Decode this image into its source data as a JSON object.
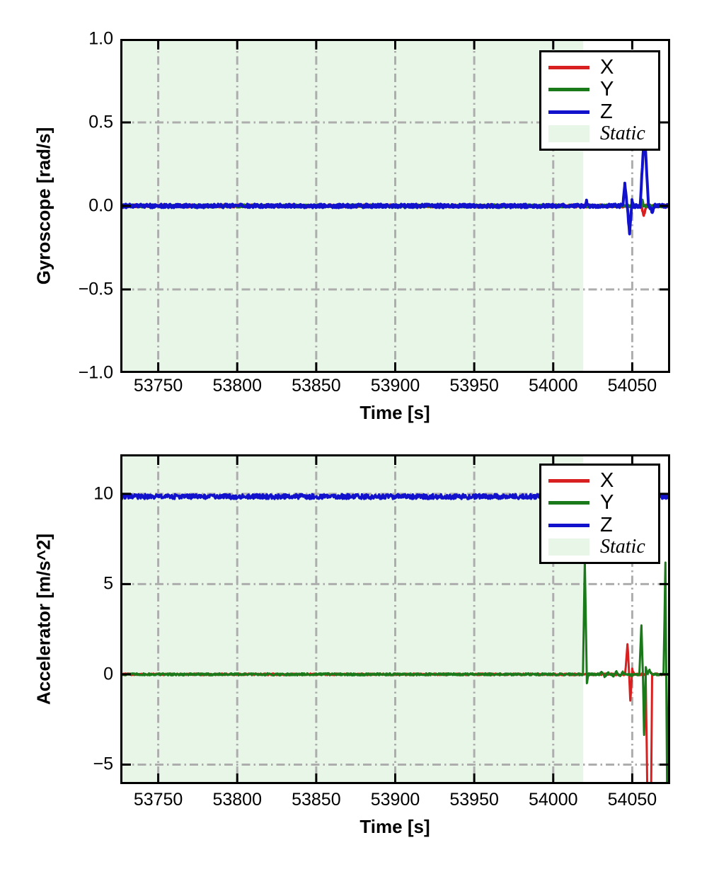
{
  "figure": {
    "background": "#ffffff"
  },
  "colors": {
    "x_series": "#d82020",
    "y_series": "#1a7a1a",
    "z_series": "#1212cc",
    "static_fill": "#e8f6e8",
    "grid": "#adadad",
    "axis": "#000000",
    "legend_bg": "#ffffff",
    "text": "#000000"
  },
  "chart_data": [
    {
      "type": "line",
      "title": "",
      "xlabel": "Time [s]",
      "ylabel": "Gyroscope [rad/s]",
      "xlim": [
        53726,
        54074
      ],
      "ylim": [
        -1.0,
        1.0
      ],
      "xticks": [
        53750,
        53800,
        53850,
        53900,
        53950,
        54000,
        54050
      ],
      "xtick_labels": [
        "53750",
        "53800",
        "53850",
        "53900",
        "53950",
        "54000",
        "54050"
      ],
      "yticks": [
        1.0,
        0.5,
        0.0,
        -0.5,
        -1.0
      ],
      "ytick_labels": [
        "1.0",
        "0.5",
        "0.0",
        "−0.5",
        "−1.0"
      ],
      "grid": "dash-dot",
      "legend": {
        "position": "upper-right",
        "entries": [
          {
            "label": "X",
            "color_key": "x_series",
            "type": "line"
          },
          {
            "label": "Y",
            "color_key": "y_series",
            "type": "line"
          },
          {
            "label": "Z",
            "color_key": "z_series",
            "type": "line"
          },
          {
            "label": "Static",
            "color_key": "static_fill",
            "type": "patch",
            "italic": true
          }
        ]
      },
      "static_region": {
        "label": "Static",
        "x0": 53726,
        "x1": 54019
      },
      "series": [
        {
          "name": "X",
          "color_key": "x_series",
          "noise": 0.008,
          "width": 3.5,
          "anchors": [
            [
              53726,
              0
            ],
            [
              54055.8,
              0
            ],
            [
              54057.3,
              -0.06
            ],
            [
              54058.8,
              0
            ],
            [
              54074,
              0
            ]
          ]
        },
        {
          "name": "Y",
          "color_key": "y_series",
          "noise": 0.008,
          "width": 3.5,
          "anchors": [
            [
              53726,
              0
            ],
            [
              54055.2,
              0
            ],
            [
              54056.2,
              0.035
            ],
            [
              54057.2,
              0
            ],
            [
              54074,
              0
            ]
          ]
        },
        {
          "name": "Z",
          "color_key": "z_series",
          "noise": 0.011,
          "width": 4,
          "anchors": [
            [
              53726,
              0
            ],
            [
              54020.2,
              0
            ],
            [
              54021,
              0.03
            ],
            [
              54021.8,
              0
            ],
            [
              54044,
              0
            ],
            [
              54045.3,
              0.135
            ],
            [
              54046.8,
              0
            ],
            [
              54048.3,
              -0.165
            ],
            [
              54049.8,
              0.03
            ],
            [
              54051,
              0
            ],
            [
              54055,
              0
            ],
            [
              54057.7,
              0.45
            ],
            [
              54060.3,
              0
            ],
            [
              54062.5,
              -0.035
            ],
            [
              54064.5,
              0
            ],
            [
              54074,
              0
            ]
          ]
        }
      ]
    },
    {
      "type": "line",
      "title": "",
      "xlabel": "Time [s]",
      "ylabel": "Accelerator [m/s^2]",
      "xlim": [
        53726,
        54074
      ],
      "ylim": [
        -6.08,
        12.19
      ],
      "xticks": [
        53750,
        53800,
        53850,
        53900,
        53950,
        54000,
        54050
      ],
      "xtick_labels": [
        "53750",
        "53800",
        "53850",
        "53900",
        "53950",
        "54000",
        "54050"
      ],
      "yticks": [
        10,
        5,
        0,
        -5
      ],
      "ytick_labels": [
        "10",
        "5",
        "0",
        "−5"
      ],
      "grid": "dash-dot",
      "legend": {
        "position": "upper-right",
        "entries": [
          {
            "label": "X",
            "color_key": "x_series",
            "type": "line"
          },
          {
            "label": "Y",
            "color_key": "y_series",
            "type": "line"
          },
          {
            "label": "Z",
            "color_key": "z_series",
            "type": "line"
          },
          {
            "label": "Static",
            "color_key": "static_fill",
            "type": "patch",
            "italic": true
          }
        ]
      },
      "static_region": {
        "label": "Static",
        "x0": 53726,
        "x1": 54019
      },
      "series": [
        {
          "name": "X",
          "color_key": "x_series",
          "noise": 0.05,
          "width": 3,
          "anchors": [
            [
              53726,
              0
            ],
            [
              54045.5,
              0
            ],
            [
              54047,
              1.7
            ],
            [
              54048,
              0.1
            ],
            [
              54048.8,
              -1.5
            ],
            [
              54050,
              0.3
            ],
            [
              54051.2,
              0
            ],
            [
              54058.5,
              0
            ],
            [
              54059.8,
              -8
            ],
            [
              54061.8,
              -8
            ],
            [
              54062.6,
              0
            ],
            [
              54074,
              0
            ]
          ]
        },
        {
          "name": "Y",
          "color_key": "y_series",
          "noise": 0.06,
          "width": 3,
          "anchors": [
            [
              53726,
              0
            ],
            [
              54018.8,
              0
            ],
            [
              54020,
              6.3
            ],
            [
              54021.3,
              -0.5
            ],
            [
              54022.3,
              0
            ],
            [
              54029.5,
              0
            ],
            [
              54030.5,
              0.12
            ],
            [
              54032.5,
              -0.1
            ],
            [
              54035,
              0.1
            ],
            [
              54038,
              -0.08
            ],
            [
              54040,
              0.12
            ],
            [
              54042,
              -0.1
            ],
            [
              54044,
              0.1
            ],
            [
              54046,
              -0.05
            ],
            [
              54054.5,
              0
            ],
            [
              54055.8,
              2.75
            ],
            [
              54056.8,
              -0.2
            ],
            [
              54057.5,
              -3.4
            ],
            [
              54058.6,
              0.4
            ],
            [
              54059.5,
              0
            ],
            [
              54061,
              0.25
            ],
            [
              54062.2,
              0
            ],
            [
              54069.8,
              0
            ],
            [
              54071,
              6.15
            ],
            [
              54072.2,
              -8
            ],
            [
              54073.3,
              0
            ],
            [
              54074,
              0
            ]
          ]
        },
        {
          "name": "Z",
          "color_key": "z_series",
          "noise": 0.13,
          "width": 3.5,
          "anchors": [
            [
              53726,
              9.85
            ],
            [
              54047.3,
              9.85
            ],
            [
              54048.3,
              9.6
            ],
            [
              54049.3,
              9.85
            ],
            [
              54074,
              9.85
            ]
          ]
        }
      ]
    }
  ]
}
